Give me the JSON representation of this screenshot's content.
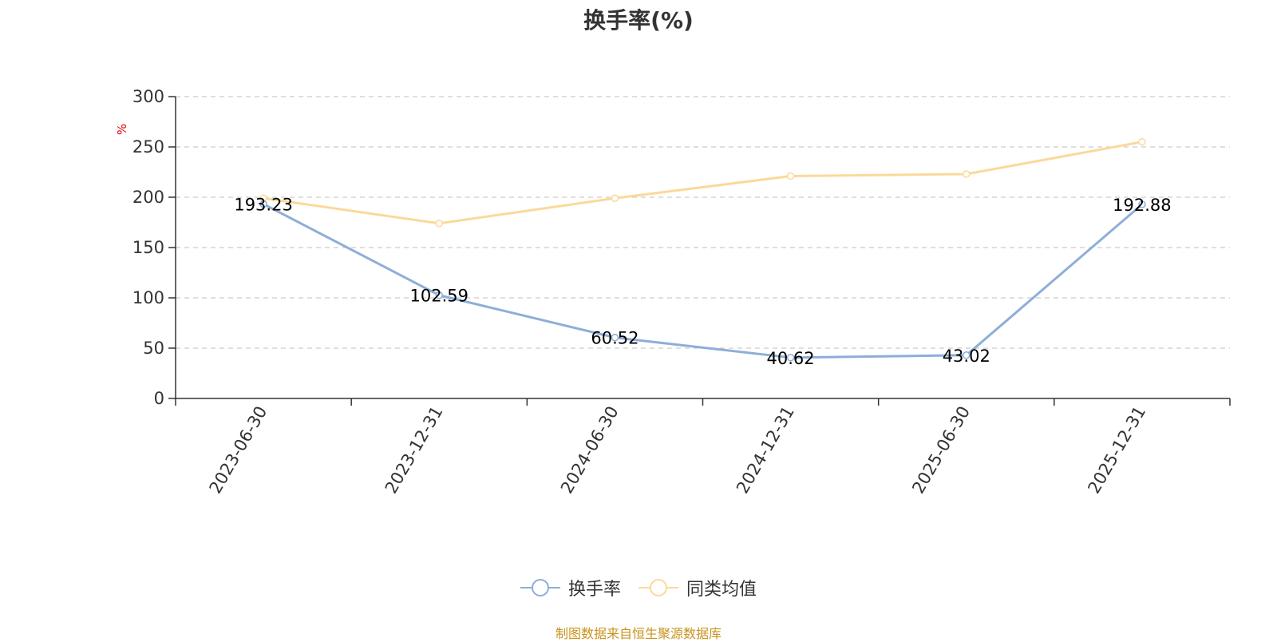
{
  "chart_data": {
    "type": "line",
    "title": "换手率(%)",
    "y_unit": "%",
    "categories": [
      "2023-06-30",
      "2023-12-31",
      "2024-06-30",
      "2024-12-31",
      "2025-06-30",
      "2025-12-31"
    ],
    "ylim": [
      0,
      300
    ],
    "yticks": [
      0,
      50,
      100,
      150,
      200,
      250,
      300
    ],
    "grid": true,
    "legend_position": "bottom",
    "series": [
      {
        "name": "换手率",
        "color": "#8eaed8",
        "values": [
          193.23,
          102.59,
          60.52,
          40.62,
          43.02,
          192.88
        ],
        "labels": [
          "193.23",
          "102.59",
          "60.52",
          "40.62",
          "43.02",
          "192.88"
        ]
      },
      {
        "name": "同类均值",
        "color": "#fbd99a",
        "values": [
          199,
          174,
          199,
          221,
          223,
          255
        ]
      }
    ]
  },
  "legend": {
    "item1": "换手率",
    "item2": "同类均值"
  },
  "source_note": "制图数据来自恒生聚源数据库",
  "colors": {
    "axis": "#333333",
    "grid": "#cccccc",
    "unit": "#e60000",
    "source": "#c8941e"
  }
}
